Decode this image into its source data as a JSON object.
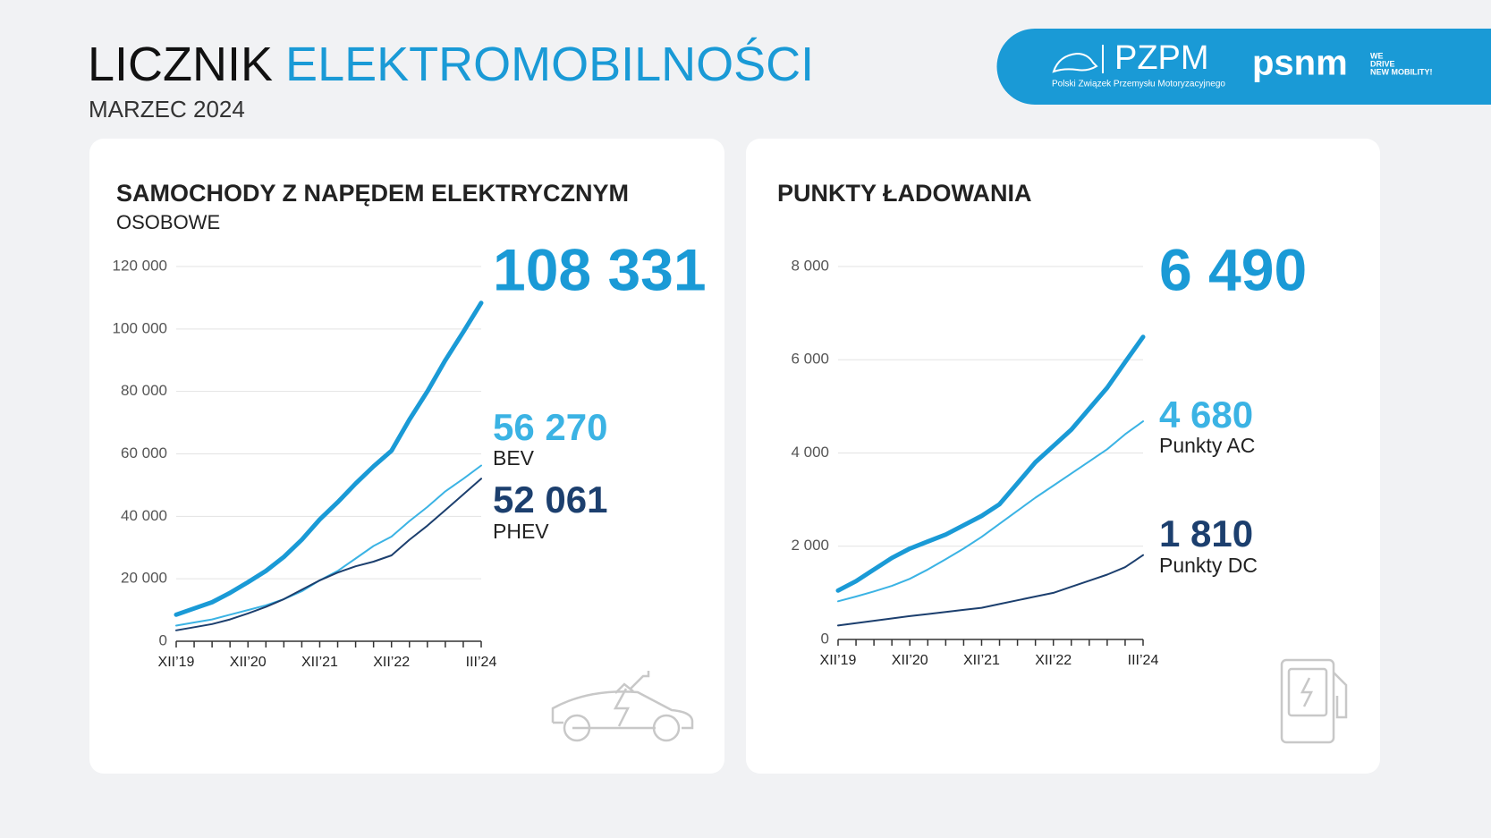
{
  "header": {
    "title_dark": "LICZNIK",
    "title_blue": "ELEKTROMOBILNOŚCI",
    "subtitle": "MARZEC 2024"
  },
  "logos": {
    "pzpm": "PZPM",
    "pzpm_full": "Polski Związek Przemysłu Motoryzacyjnego",
    "psnm": "psnm",
    "psnm_tag_1": "WE",
    "psnm_tag_2": "DRIVE",
    "psnm_tag_3": "NEW MOBILITY!"
  },
  "chart_data": [
    {
      "type": "line",
      "title": "SAMOCHODY Z NAPĘDEM ELEKTRYCZNYM",
      "subtitle": "OSOBOWE",
      "categories": [
        "XII’19",
        null,
        null,
        null,
        "XII’20",
        null,
        null,
        null,
        "XII’21",
        null,
        null,
        null,
        "XII’22",
        null,
        null,
        null,
        null,
        "III’24"
      ],
      "ylim": [
        0,
        120000
      ],
      "yticks": [
        0,
        {
          "value": 20000,
          "label": "20 000"
        },
        {
          "value": 40000,
          "label": "40 000"
        },
        {
          "value": 60000,
          "label": "60 000"
        },
        {
          "value": 80000,
          "label": "80 000"
        },
        {
          "value": 100000,
          "label": "100 000"
        },
        {
          "value": 120000,
          "label": "120 000"
        }
      ],
      "grid": true,
      "series": [
        {
          "color": "#1a9ad6",
          "values": [
            8500,
            10500,
            12500,
            15500,
            18900,
            22500,
            27000,
            32500,
            39000,
            44500,
            50500,
            56000,
            61000,
            71000,
            80000,
            90000,
            99000,
            108331
          ],
          "value_labels": [
            null,
            null,
            null,
            null,
            null,
            null,
            null,
            null,
            null,
            null,
            null,
            null,
            null,
            null,
            null,
            null,
            null,
            "108 331"
          ]
        },
        {
          "name": "BEV",
          "color": "#3bb3e4",
          "values": [
            5000,
            6000,
            7000,
            8500,
            10000,
            11500,
            13500,
            16000,
            19500,
            22500,
            26500,
            30500,
            33500,
            38500,
            43000,
            48000,
            52000,
            56270
          ],
          "value_labels": [
            null,
            null,
            null,
            null,
            null,
            null,
            null,
            null,
            null,
            null,
            null,
            null,
            null,
            null,
            null,
            null,
            null,
            "56 270"
          ]
        },
        {
          "name": "PHEV",
          "color": "#1c3f6e",
          "values": [
            3500,
            4500,
            5500,
            7000,
            8900,
            11000,
            13500,
            16500,
            19500,
            22000,
            24000,
            25500,
            27500,
            32500,
            37000,
            42000,
            47000,
            52061
          ],
          "value_labels": [
            null,
            null,
            null,
            null,
            null,
            null,
            null,
            null,
            null,
            null,
            null,
            null,
            null,
            null,
            null,
            null,
            null,
            "52 061"
          ]
        }
      ]
    },
    {
      "type": "line",
      "title": "PUNKTY ŁADOWANIA",
      "categories": [
        "XII’19",
        null,
        null,
        null,
        "XII’20",
        null,
        null,
        null,
        "XII’21",
        null,
        null,
        null,
        "XII’22",
        null,
        null,
        null,
        null,
        "III’24"
      ],
      "ylim": [
        0,
        8000
      ],
      "yticks": [
        0,
        {
          "value": 2000,
          "label": "2 000"
        },
        {
          "value": 4000,
          "label": "4 000"
        },
        {
          "value": 6000,
          "label": "6 000"
        },
        {
          "value": 8000,
          "label": "8 000"
        }
      ],
      "grid": true,
      "series": [
        {
          "color": "#1a9ad6",
          "values": [
            1050,
            1250,
            1500,
            1750,
            1950,
            2100,
            2250,
            2450,
            2650,
            2900,
            3350,
            3800,
            4150,
            4500,
            4950,
            5400,
            5950,
            6490
          ],
          "value_labels": [
            null,
            null,
            null,
            null,
            null,
            null,
            null,
            null,
            null,
            null,
            null,
            null,
            null,
            null,
            null,
            null,
            null,
            "6 490"
          ]
        },
        {
          "name": "Punkty AC",
          "color": "#3bb3e4",
          "values": [
            820,
            920,
            1030,
            1150,
            1300,
            1500,
            1720,
            1950,
            2200,
            2480,
            2760,
            3040,
            3300,
            3560,
            3820,
            4080,
            4400,
            4680
          ],
          "value_labels": [
            null,
            null,
            null,
            null,
            null,
            null,
            null,
            null,
            null,
            null,
            null,
            null,
            null,
            null,
            null,
            null,
            null,
            "4 680"
          ]
        },
        {
          "name": "Punkty DC",
          "color": "#1c3f6e",
          "values": [
            300,
            350,
            400,
            450,
            500,
            545,
            590,
            635,
            680,
            760,
            840,
            920,
            1000,
            1130,
            1260,
            1390,
            1550,
            1810
          ],
          "value_labels": [
            null,
            null,
            null,
            null,
            null,
            null,
            null,
            null,
            null,
            null,
            null,
            null,
            null,
            null,
            null,
            null,
            null,
            "1 810"
          ]
        }
      ]
    }
  ]
}
